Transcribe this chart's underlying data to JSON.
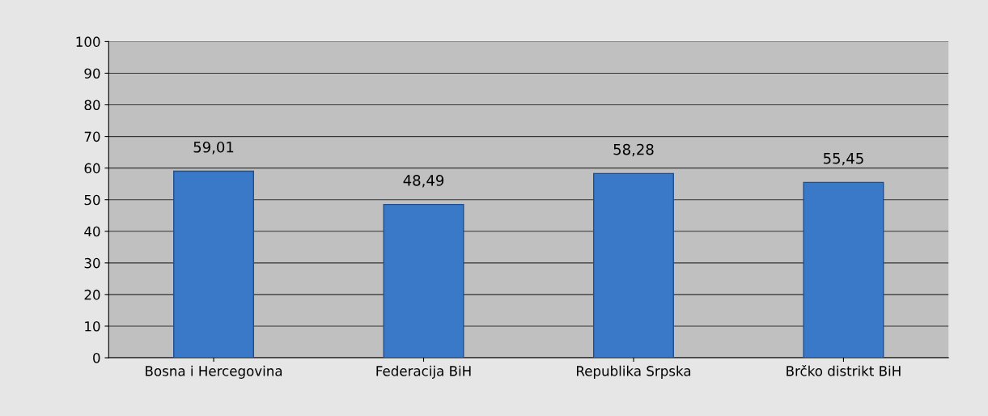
{
  "chart_data": {
    "type": "bar",
    "categories": [
      "Bosna i Hercegovina",
      "Federacija BiH",
      "Republika Srpska",
      "Brčko distrikt BiH"
    ],
    "values": [
      59.01,
      48.49,
      58.28,
      55.45
    ],
    "value_labels": [
      "59,01",
      "48,49",
      "58,28",
      "55,45"
    ],
    "color": "#3a78c8",
    "ylim": [
      0,
      100
    ],
    "yticks": [
      0,
      10,
      20,
      30,
      40,
      50,
      60,
      70,
      80,
      90,
      100
    ],
    "grid": "y"
  }
}
